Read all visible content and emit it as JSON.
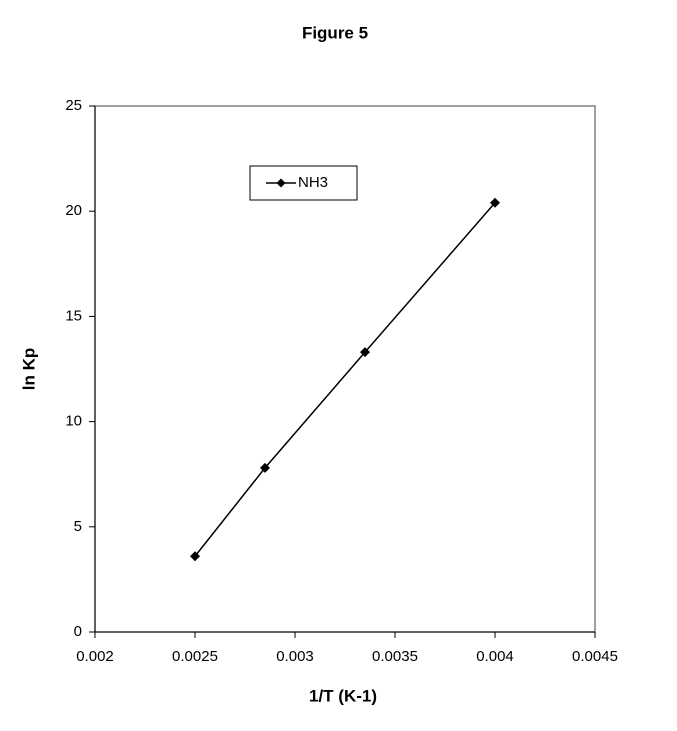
{
  "chart_data": {
    "type": "line",
    "title": "Figure 5",
    "x_label": "1/T (K-1)",
    "y_label": "ln Kp",
    "x": [
      0.0025,
      0.00285,
      0.00335,
      0.004
    ],
    "series": [
      {
        "name": "NH3",
        "color": "#000000",
        "marker": "diamond",
        "values": [
          3.6,
          7.8,
          13.3,
          20.4
        ]
      }
    ],
    "xlim": [
      0.002,
      0.0045
    ],
    "xticks": [
      0.002,
      0.0025,
      0.003,
      0.0035,
      0.004,
      0.0045
    ],
    "ylim": [
      0,
      25
    ],
    "yticks": [
      0,
      5,
      10,
      15,
      20,
      25
    ],
    "grid": false,
    "legend": "upper left"
  }
}
